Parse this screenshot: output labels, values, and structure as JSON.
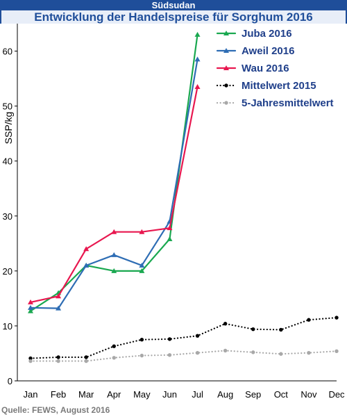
{
  "header": {
    "title": "Südsudan",
    "subtitle": "Entwicklung der Handelspreise für Sorghum 2016"
  },
  "source": "Quelle: FEWS, August 2016",
  "colors": {
    "header_bg": "#1f4e9a",
    "juba": "#1aa850",
    "aweil": "#2e6db4",
    "wau": "#e8174f",
    "mittel2015": "#000000",
    "fuenfjahres": "#a8a8a8"
  },
  "chart_data": {
    "type": "line",
    "title": "",
    "xlabel": "",
    "ylabel": "SSP/kg",
    "ylim": [
      0,
      65
    ],
    "yticks": [
      0,
      10,
      20,
      30,
      40,
      50,
      60
    ],
    "grid": false,
    "legend_position": "top-right",
    "categories": [
      "Jan",
      "Feb",
      "Mar",
      "Apr",
      "May",
      "Jun",
      "Jul",
      "Aug",
      "Sep",
      "Oct",
      "Nov",
      "Dec"
    ],
    "series": [
      {
        "name": "Juba 2016",
        "color": "#1aa850",
        "marker": "triangle",
        "style": "solid",
        "values": [
          12.7,
          16.0,
          21.0,
          20.0,
          20.0,
          25.8,
          63.0,
          null,
          null,
          null,
          null,
          null
        ]
      },
      {
        "name": "Aweil 2016",
        "color": "#2e6db4",
        "marker": "triangle",
        "style": "solid",
        "values": [
          13.3,
          13.2,
          21.0,
          22.9,
          21.0,
          29.0,
          58.5,
          null,
          null,
          null,
          null,
          null
        ]
      },
      {
        "name": "Wau 2016",
        "color": "#e8174f",
        "marker": "triangle",
        "style": "solid",
        "values": [
          14.3,
          15.4,
          24.0,
          27.1,
          27.1,
          27.8,
          53.5,
          null,
          null,
          null,
          null,
          null
        ]
      },
      {
        "name": "Mittelwert 2015",
        "color": "#000000",
        "marker": "circle",
        "style": "dotted",
        "values": [
          4.1,
          4.3,
          4.3,
          6.3,
          7.5,
          7.6,
          8.2,
          10.4,
          9.4,
          9.3,
          11.1,
          11.5
        ]
      },
      {
        "name": "5-Jahresmittelwert",
        "color": "#a8a8a8",
        "marker": "circle",
        "style": "dotted",
        "values": [
          3.6,
          3.6,
          3.6,
          4.2,
          4.6,
          4.7,
          5.1,
          5.5,
          5.2,
          4.9,
          5.1,
          5.4
        ]
      }
    ]
  }
}
